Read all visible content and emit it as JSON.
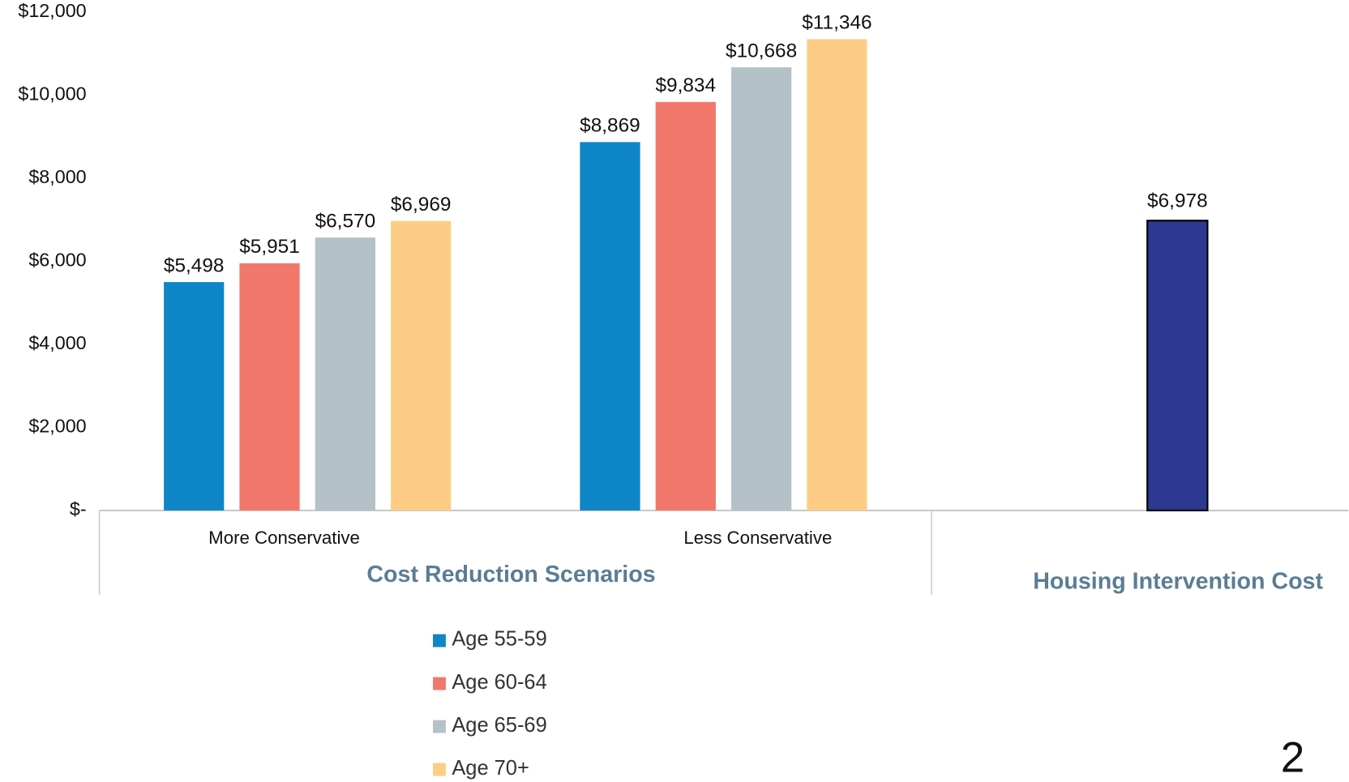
{
  "chart_data": {
    "type": "bar",
    "categories": [
      "More Conservative",
      "Less Conservative"
    ],
    "group_labels": [
      "Cost Reduction Scenarios",
      "Housing Intervention Cost"
    ],
    "series": [
      {
        "name": "Age 55-59",
        "color": "#0e86c8",
        "values": [
          5498,
          8869
        ],
        "value_labels": [
          "$5,498",
          "$8,869"
        ]
      },
      {
        "name": "Age 60-64",
        "color": "#f2776b",
        "values": [
          5951,
          9834
        ],
        "value_labels": [
          "$5,951",
          "$9,834"
        ]
      },
      {
        "name": "Age 65-69",
        "color": "#b4c1c9",
        "values": [
          6570,
          10668
        ],
        "value_labels": [
          "$6,570",
          "$10,668"
        ]
      },
      {
        "name": "Age 70+",
        "color": "#fecd85",
        "values": [
          6969,
          11346
        ],
        "value_labels": [
          "$6,969",
          "$11,346"
        ]
      }
    ],
    "housing_bar": {
      "value": 6978,
      "value_label": "$6,978",
      "color": "#2b3990"
    },
    "ylim": [
      0,
      12000
    ],
    "yticks": [
      {
        "value": 0,
        "label": "$-"
      },
      {
        "value": 2000,
        "label": "$2,000"
      },
      {
        "value": 4000,
        "label": "$4,000"
      },
      {
        "value": 6000,
        "label": "$6,000"
      },
      {
        "value": 8000,
        "label": "$8,000"
      },
      {
        "value": 10000,
        "label": "$10,000"
      },
      {
        "value": 12000,
        "label": "$12,000"
      }
    ],
    "grid": false
  },
  "page_number": "2"
}
